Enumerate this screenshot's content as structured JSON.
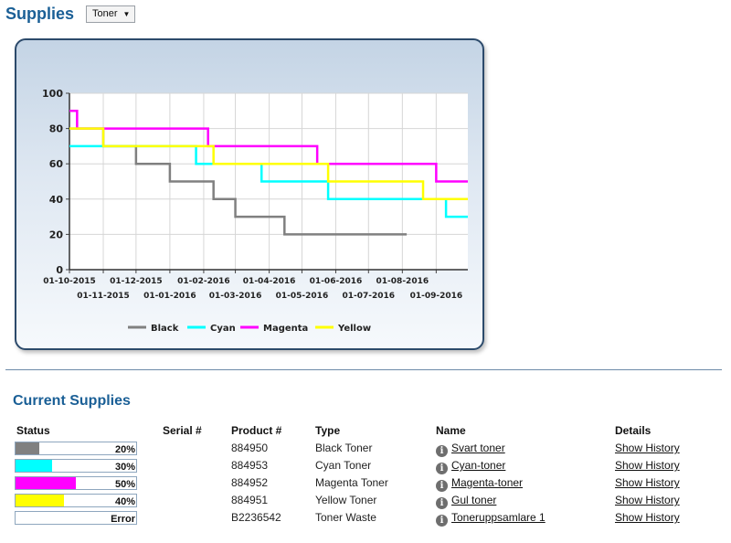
{
  "header": {
    "title": "Supplies"
  },
  "supply_select": {
    "value": "Toner",
    "arrow": "▼"
  },
  "chart_data": {
    "type": "line",
    "step": true,
    "ylim": [
      0,
      100
    ],
    "y_ticks": [
      0,
      20,
      40,
      60,
      80,
      100
    ],
    "x_start": "2015-10-01",
    "x_end": "2016-09-30",
    "x_ticks": [
      "01-10-2015",
      "01-11-2015",
      "01-12-2015",
      "01-01-2016",
      "01-02-2016",
      "01-03-2016",
      "01-04-2016",
      "01-05-2016",
      "01-06-2016",
      "01-07-2016",
      "01-08-2016",
      "01-09-2016"
    ],
    "grid": true,
    "legend_position": "bottom",
    "series": [
      {
        "name": "Black",
        "color": "#808080",
        "points": [
          [
            "2015-10-01",
            80
          ],
          [
            "2015-11-01",
            70
          ],
          [
            "2015-12-01",
            60
          ],
          [
            "2016-01-01",
            50
          ],
          [
            "2016-02-10",
            40
          ],
          [
            "2016-03-01",
            30
          ],
          [
            "2016-04-15",
            20
          ],
          [
            "2016-08-05",
            20
          ]
        ]
      },
      {
        "name": "Cyan",
        "color": "#00ffff",
        "points": [
          [
            "2015-10-01",
            70
          ],
          [
            "2016-01-25",
            60
          ],
          [
            "2016-03-25",
            50
          ],
          [
            "2016-05-25",
            40
          ],
          [
            "2016-09-10",
            30
          ],
          [
            "2016-09-30",
            30
          ]
        ]
      },
      {
        "name": "Magenta",
        "color": "#ff00ff",
        "points": [
          [
            "2015-10-01",
            90
          ],
          [
            "2015-10-08",
            80
          ],
          [
            "2016-02-05",
            70
          ],
          [
            "2016-05-15",
            60
          ],
          [
            "2016-09-01",
            50
          ],
          [
            "2016-09-30",
            50
          ]
        ]
      },
      {
        "name": "Yellow",
        "color": "#ffff00",
        "points": [
          [
            "2015-10-01",
            80
          ],
          [
            "2015-11-01",
            70
          ],
          [
            "2016-02-10",
            60
          ],
          [
            "2016-05-25",
            50
          ],
          [
            "2016-08-20",
            40
          ],
          [
            "2016-09-30",
            40
          ]
        ]
      }
    ]
  },
  "current": {
    "title": "Current Supplies",
    "columns": {
      "status": "Status",
      "serial": "Serial #",
      "product": "Product #",
      "type": "Type",
      "name": "Name",
      "details": "Details"
    },
    "rows": [
      {
        "status": "20%",
        "fill_fraction": 0.2,
        "color": "#808080",
        "serial": "",
        "product": "884950",
        "type": "Black Toner",
        "name": "Svart toner",
        "details": "Show History"
      },
      {
        "status": "30%",
        "fill_fraction": 0.3,
        "color": "#00ffff",
        "serial": "",
        "product": "884953",
        "type": "Cyan Toner",
        "name": "Cyan-toner",
        "details": "Show History"
      },
      {
        "status": "50%",
        "fill_fraction": 0.5,
        "color": "#ff00ff",
        "serial": "",
        "product": "884952",
        "type": "Magenta Toner",
        "name": "Magenta-toner",
        "details": "Show History"
      },
      {
        "status": "40%",
        "fill_fraction": 0.4,
        "color": "#ffff00",
        "serial": "",
        "product": "884951",
        "type": "Yellow Toner",
        "name": "Gul toner",
        "details": "Show History"
      },
      {
        "status": "Error",
        "fill_fraction": 0,
        "color": "#ffffff",
        "serial": "",
        "product": "B2236542",
        "type": "Toner Waste",
        "name": "Toneruppsamlare 1",
        "details": "Show History"
      }
    ]
  }
}
